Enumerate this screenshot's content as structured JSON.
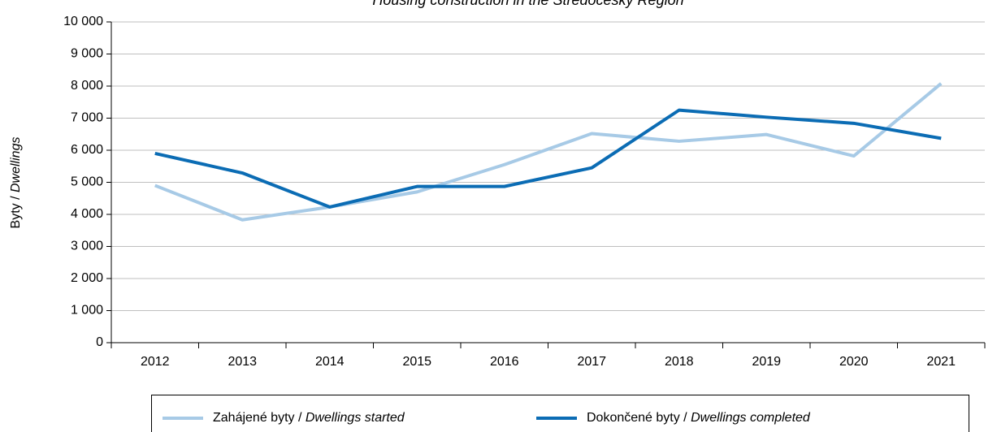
{
  "chart_data": {
    "type": "line",
    "title": "Housing construction in the Středočeský Region",
    "y_label": "Byty / Dwellings",
    "categories": [
      "2012",
      "2013",
      "2014",
      "2015",
      "2016",
      "2017",
      "2018",
      "2019",
      "2020",
      "2021"
    ],
    "series": [
      {
        "name": "Zahájené byty / Dwellings started",
        "color": "#a7cae6",
        "values": [
          4900,
          3830,
          4230,
          4700,
          5550,
          6520,
          6280,
          6490,
          5820,
          8080
        ]
      },
      {
        "name": "Dokončené byty / Dwellings completed",
        "color": "#0b6cb4",
        "values": [
          5900,
          5290,
          4230,
          4870,
          4870,
          5450,
          7250,
          7030,
          6840,
          6370
        ]
      }
    ],
    "ylim": [
      0,
      10000
    ],
    "yticks": [
      0,
      {
        "value": 1000,
        "label": "1 000"
      },
      {
        "value": 2000,
        "label": "2 000"
      },
      {
        "value": 3000,
        "label": "3 000"
      },
      {
        "value": 4000,
        "label": "4 000"
      },
      {
        "value": 5000,
        "label": "5 000"
      },
      {
        "value": 6000,
        "label": "6 000"
      },
      {
        "value": 7000,
        "label": "7 000"
      },
      {
        "value": 8000,
        "label": "8 000"
      },
      {
        "value": 9000,
        "label": "9 000"
      },
      {
        "value": 10000,
        "label": "10 000"
      }
    ],
    "grid": true,
    "legend": "bottom"
  }
}
